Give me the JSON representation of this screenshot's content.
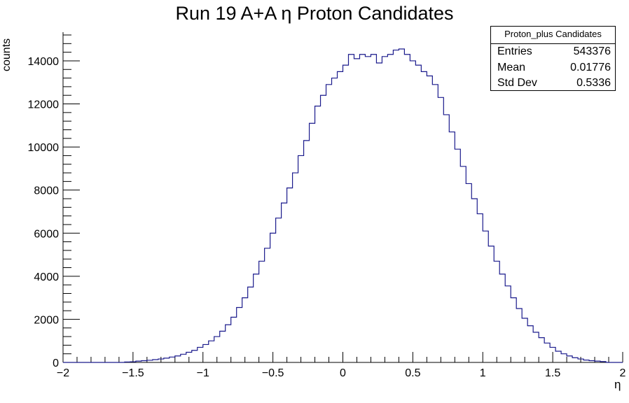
{
  "chart_data": {
    "type": "histogram",
    "title": "Run 19 A+A η Proton Candidates",
    "xlabel": "η",
    "ylabel": "counts",
    "xlim": [
      -2,
      2
    ],
    "ylim": [
      0,
      15330
    ],
    "x_tick_labels": [
      "−2",
      "−1.5",
      "−1",
      "−0.5",
      "0",
      "0.5",
      "1",
      "1.5",
      "2"
    ],
    "x_ticks": [
      -2,
      -1.5,
      -1,
      -0.5,
      0,
      0.5,
      1,
      1.5,
      2
    ],
    "y_tick_labels": [
      "0",
      "2000",
      "4000",
      "6000",
      "8000",
      "10000",
      "12000",
      "14000"
    ],
    "y_ticks": [
      0,
      2000,
      4000,
      6000,
      8000,
      10000,
      12000,
      14000
    ],
    "line_color": "#1a1a8c",
    "bins": {
      "start": -2,
      "width": 0.04,
      "count": 100
    },
    "counts": [
      0,
      0,
      0,
      0,
      0,
      0,
      0,
      0,
      0,
      0,
      0,
      20,
      30,
      60,
      80,
      100,
      130,
      160,
      200,
      250,
      300,
      380,
      470,
      560,
      700,
      830,
      1000,
      1200,
      1450,
      1750,
      2100,
      2550,
      3000,
      3500,
      4100,
      4700,
      5300,
      6000,
      6700,
      7400,
      8100,
      8800,
      9600,
      10300,
      11100,
      11900,
      12400,
      12900,
      13200,
      13500,
      13800,
      14300,
      14100,
      14300,
      14200,
      14300,
      13900,
      14200,
      14300,
      14500,
      14550,
      14300,
      14000,
      13800,
      13500,
      13300,
      12900,
      12300,
      11500,
      10700,
      9900,
      9100,
      8300,
      7600,
      6900,
      6100,
      5400,
      4700,
      4100,
      3550,
      3000,
      2500,
      2050,
      1700,
      1400,
      1150,
      900,
      700,
      520,
      400,
      300,
      220,
      160,
      110,
      80,
      60,
      40,
      0,
      0,
      0
    ]
  },
  "stats_box": {
    "name": "Proton_plus Candidates",
    "entries_label": "Entries",
    "entries_value": "543376",
    "mean_label": "Mean",
    "mean_value": "0.01776",
    "stddev_label": "Std Dev",
    "stddev_value": "0.5336"
  }
}
